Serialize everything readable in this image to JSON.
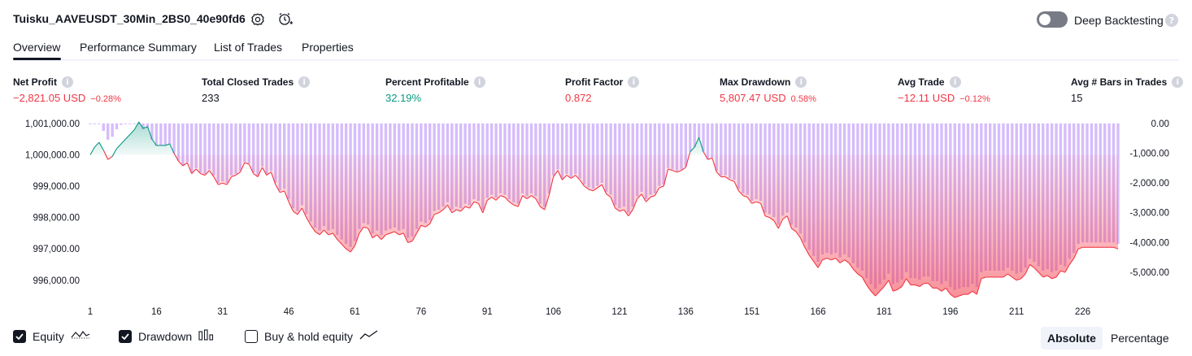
{
  "header": {
    "strategy_name": "Tuisku_AAVEUSDT_30Min_2BS0_40e90fd6",
    "deep_backtesting_label": "Deep Backtesting",
    "deep_backtesting_on": false,
    "help_glyph": "?"
  },
  "tabs": [
    {
      "label": "Overview",
      "active": true
    },
    {
      "label": "Performance Summary",
      "active": false
    },
    {
      "label": "List of Trades",
      "active": false
    },
    {
      "label": "Properties",
      "active": false
    }
  ],
  "metrics": [
    {
      "label": "Net Profit",
      "value": "−2,821.05 USD",
      "pct": "−0.28%",
      "color": "#f23645"
    },
    {
      "label": "Total Closed Trades",
      "value": "233",
      "pct": "",
      "color": "#131722"
    },
    {
      "label": "Percent Profitable",
      "value": "32.19%",
      "pct": "",
      "color": "#089981"
    },
    {
      "label": "Profit Factor",
      "value": "0.872",
      "pct": "",
      "color": "#f23645"
    },
    {
      "label": "Max Drawdown",
      "value": "5,807.47 USD",
      "pct": "0.58%",
      "color": "#f23645"
    },
    {
      "label": "Avg Trade",
      "value": "−12.11 USD",
      "pct": "−0.12%",
      "color": "#f23645"
    },
    {
      "label": "Avg # Bars in Trades",
      "value": "15",
      "pct": "",
      "color": "#131722"
    }
  ],
  "info_glyph": "i",
  "chart_data": {
    "type": "area",
    "left_axis_ticks": [
      "1,001,000.00",
      "1,000,000.00",
      "999,000.00",
      "998,000.00",
      "997,000.00",
      "996,000.00"
    ],
    "left_axis_values": [
      1001000,
      1000000,
      999000,
      998000,
      997000,
      996000
    ],
    "right_axis_ticks": [
      "0.00",
      "-1,000.00",
      "-2,000.00",
      "-3,000.00",
      "-4,000.00",
      "-5,000.00"
    ],
    "right_axis_values": [
      0,
      -1000,
      -2000,
      -3000,
      -4000,
      -5000
    ],
    "x_ticks": [
      "1",
      "16",
      "31",
      "46",
      "61",
      "76",
      "91",
      "106",
      "121",
      "136",
      "151",
      "166",
      "181",
      "196",
      "211",
      "226"
    ],
    "x_tick_values": [
      1,
      16,
      31,
      46,
      61,
      76,
      91,
      106,
      121,
      136,
      151,
      166,
      181,
      196,
      211,
      226
    ],
    "xlim": [
      1,
      234
    ],
    "ylim_equity": [
      995450,
      1001050
    ],
    "ylim_drawdown": [
      -5850,
      50
    ],
    "equity_baseline": 1000000,
    "series": [
      {
        "name": "Equity",
        "color_up": "#089981",
        "color_down": "#f23645",
        "points": [
          [
            1,
            1000000
          ],
          [
            2,
            1000250
          ],
          [
            3,
            1000400
          ],
          [
            4,
            1000150
          ],
          [
            5,
            999850
          ],
          [
            6,
            999950
          ],
          [
            7,
            1000200
          ],
          [
            8,
            1000350
          ],
          [
            9,
            1000500
          ],
          [
            10,
            1000650
          ],
          [
            11,
            1000800
          ],
          [
            12,
            1001050
          ],
          [
            13,
            1000850
          ],
          [
            14,
            1000900
          ],
          [
            15,
            1000500
          ],
          [
            16,
            1000300
          ],
          [
            17,
            1000300
          ],
          [
            18,
            1000300
          ],
          [
            19,
            1000350
          ],
          [
            20,
            1000050
          ],
          [
            21,
            999800
          ],
          [
            22,
            999650
          ],
          [
            23,
            999750
          ],
          [
            24,
            999400
          ],
          [
            25,
            999550
          ],
          [
            26,
            999400
          ],
          [
            27,
            999350
          ],
          [
            28,
            999500
          ],
          [
            29,
            999300
          ],
          [
            30,
            999050
          ],
          [
            31,
            999100
          ],
          [
            32,
            999050
          ],
          [
            33,
            999300
          ],
          [
            34,
            999350
          ],
          [
            35,
            999450
          ],
          [
            36,
            999750
          ],
          [
            37,
            999700
          ],
          [
            38,
            999400
          ],
          [
            39,
            999300
          ],
          [
            40,
            999600
          ],
          [
            41,
            999350
          ],
          [
            42,
            999450
          ],
          [
            43,
            999050
          ],
          [
            44,
            998800
          ],
          [
            45,
            998850
          ],
          [
            46,
            998500
          ],
          [
            47,
            998200
          ],
          [
            48,
            998100
          ],
          [
            49,
            998300
          ],
          [
            50,
            998000
          ],
          [
            51,
            997750
          ],
          [
            52,
            997550
          ],
          [
            53,
            997450
          ],
          [
            54,
            997600
          ],
          [
            55,
            997450
          ],
          [
            56,
            997500
          ],
          [
            57,
            997300
          ],
          [
            58,
            997150
          ],
          [
            59,
            997000
          ],
          [
            60,
            996900
          ],
          [
            61,
            997100
          ],
          [
            62,
            997500
          ],
          [
            63,
            997700
          ],
          [
            64,
            997650
          ],
          [
            65,
            997350
          ],
          [
            66,
            997450
          ],
          [
            67,
            997300
          ],
          [
            68,
            997450
          ],
          [
            69,
            997500
          ],
          [
            70,
            997550
          ],
          [
            71,
            997450
          ],
          [
            72,
            997500
          ],
          [
            73,
            997200
          ],
          [
            74,
            997250
          ],
          [
            75,
            997500
          ],
          [
            76,
            997750
          ],
          [
            77,
            997700
          ],
          [
            78,
            997800
          ],
          [
            79,
            998100
          ],
          [
            80,
            998150
          ],
          [
            81,
            998250
          ],
          [
            82,
            998400
          ],
          [
            83,
            998150
          ],
          [
            84,
            998250
          ],
          [
            85,
            998200
          ],
          [
            86,
            998350
          ],
          [
            87,
            998300
          ],
          [
            88,
            998500
          ],
          [
            89,
            998450
          ],
          [
            90,
            998150
          ],
          [
            91,
            998550
          ],
          [
            92,
            998650
          ],
          [
            93,
            998550
          ],
          [
            94,
            998700
          ],
          [
            95,
            998650
          ],
          [
            96,
            998500
          ],
          [
            97,
            998400
          ],
          [
            98,
            998350
          ],
          [
            99,
            998700
          ],
          [
            100,
            998600
          ],
          [
            101,
            998700
          ],
          [
            102,
            998600
          ],
          [
            103,
            998350
          ],
          [
            104,
            998250
          ],
          [
            105,
            998700
          ],
          [
            106,
            999300
          ],
          [
            107,
            999500
          ],
          [
            108,
            999200
          ],
          [
            109,
            999350
          ],
          [
            110,
            999250
          ],
          [
            111,
            999350
          ],
          [
            112,
            999200
          ],
          [
            113,
            999000
          ],
          [
            114,
            998900
          ],
          [
            115,
            998850
          ],
          [
            116,
            998950
          ],
          [
            117,
            999050
          ],
          [
            118,
            998750
          ],
          [
            119,
            998650
          ],
          [
            120,
            998300
          ],
          [
            121,
            998200
          ],
          [
            122,
            998250
          ],
          [
            123,
            998050
          ],
          [
            124,
            998250
          ],
          [
            125,
            998600
          ],
          [
            126,
            998750
          ],
          [
            127,
            998500
          ],
          [
            128,
            998650
          ],
          [
            129,
            998700
          ],
          [
            130,
            998950
          ],
          [
            131,
            999000
          ],
          [
            132,
            999550
          ],
          [
            133,
            999500
          ],
          [
            134,
            999450
          ],
          [
            135,
            999500
          ],
          [
            136,
            999600
          ],
          [
            137,
            1000100
          ],
          [
            138,
            1000250
          ],
          [
            139,
            1000550
          ],
          [
            140,
            1000100
          ],
          [
            141,
            999850
          ],
          [
            142,
            999900
          ],
          [
            143,
            999450
          ],
          [
            144,
            999300
          ],
          [
            145,
            999300
          ],
          [
            146,
            999200
          ],
          [
            147,
            999150
          ],
          [
            148,
            998850
          ],
          [
            149,
            998700
          ],
          [
            150,
            998650
          ],
          [
            151,
            998450
          ],
          [
            152,
            998500
          ],
          [
            153,
            998450
          ],
          [
            154,
            998050
          ],
          [
            155,
            998000
          ],
          [
            156,
            997900
          ],
          [
            157,
            997650
          ],
          [
            158,
            997950
          ],
          [
            159,
            998050
          ],
          [
            160,
            997650
          ],
          [
            161,
            997550
          ],
          [
            162,
            997350
          ],
          [
            163,
            997050
          ],
          [
            164,
            996800
          ],
          [
            165,
            996600
          ],
          [
            166,
            996400
          ],
          [
            167,
            996650
          ],
          [
            168,
            996700
          ],
          [
            169,
            996650
          ],
          [
            170,
            996700
          ],
          [
            171,
            996550
          ],
          [
            172,
            996650
          ],
          [
            173,
            996550
          ],
          [
            174,
            996350
          ],
          [
            175,
            996200
          ],
          [
            176,
            996100
          ],
          [
            177,
            995850
          ],
          [
            178,
            995650
          ],
          [
            179,
            995500
          ],
          [
            180,
            995650
          ],
          [
            181,
            995800
          ],
          [
            182,
            996000
          ],
          [
            183,
            995650
          ],
          [
            184,
            995700
          ],
          [
            185,
            995800
          ],
          [
            186,
            996050
          ],
          [
            187,
            995850
          ],
          [
            188,
            995850
          ],
          [
            189,
            995800
          ],
          [
            190,
            995900
          ],
          [
            191,
            995900
          ],
          [
            192,
            995750
          ],
          [
            193,
            995750
          ],
          [
            194,
            995650
          ],
          [
            195,
            995750
          ],
          [
            196,
            995550
          ],
          [
            197,
            995450
          ],
          [
            198,
            995500
          ],
          [
            199,
            995550
          ],
          [
            200,
            995550
          ],
          [
            201,
            995650
          ],
          [
            202,
            995550
          ],
          [
            203,
            996050
          ],
          [
            204,
            996100
          ],
          [
            205,
            996100
          ],
          [
            206,
            996100
          ],
          [
            207,
            996100
          ],
          [
            208,
            996100
          ],
          [
            209,
            996200
          ],
          [
            210,
            996100
          ],
          [
            211,
            996000
          ],
          [
            212,
            996050
          ],
          [
            213,
            996200
          ],
          [
            214,
            996500
          ],
          [
            215,
            996400
          ],
          [
            216,
            996250
          ],
          [
            217,
            996100
          ],
          [
            218,
            996150
          ],
          [
            219,
            996050
          ],
          [
            220,
            996100
          ],
          [
            221,
            996300
          ],
          [
            222,
            996250
          ],
          [
            223,
            996500
          ],
          [
            224,
            996700
          ],
          [
            225,
            997000
          ],
          [
            226,
            997050
          ],
          [
            227,
            997050
          ],
          [
            228,
            997050
          ],
          [
            229,
            997050
          ],
          [
            230,
            997050
          ],
          [
            231,
            997050
          ],
          [
            232,
            997050
          ],
          [
            233,
            997050
          ],
          [
            234,
            997000
          ]
        ]
      },
      {
        "name": "Drawdown",
        "color": "#d3b8ff"
      },
      {
        "name": "Buy & hold equity"
      }
    ]
  },
  "legend": [
    {
      "label": "Equity",
      "checked": true,
      "icon": "equity-line-icon"
    },
    {
      "label": "Drawdown",
      "checked": true,
      "icon": "drawdown-bars-icon"
    },
    {
      "label": "Buy & hold equity",
      "checked": false,
      "icon": "buy-hold-line-icon"
    }
  ],
  "scale_toggle": {
    "absolute_label": "Absolute",
    "percentage_label": "Percentage",
    "selected": "Absolute"
  },
  "colors": {
    "accent": "#131722",
    "positive": "#089981",
    "negative": "#f23645",
    "drawdown": "#cfb0fb"
  }
}
